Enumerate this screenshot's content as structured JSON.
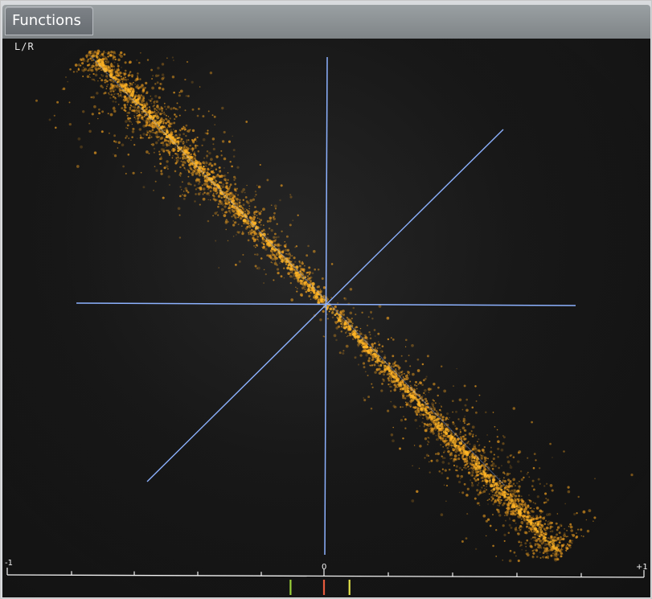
{
  "window": {
    "title": "Functions"
  },
  "scope": {
    "mode_label": "L/R",
    "scale": {
      "left": "-1",
      "center": "0",
      "right": "+1",
      "min": -1,
      "max": 1
    },
    "scatter": {
      "correlation": -0.85,
      "point_color": "#f0a020"
    },
    "indicator_markers": [
      {
        "name": "green-marker",
        "value": -0.11,
        "color": "#9ad03a"
      },
      {
        "name": "red-marker",
        "value": -0.005,
        "color": "#e65b3d"
      },
      {
        "name": "yellow-marker",
        "value": 0.075,
        "color": "#e4e34c"
      }
    ]
  },
  "colors": {
    "background": "#151515",
    "axis": "#8db2ff",
    "frame": "#d9dbde",
    "tab": "#767b80"
  }
}
